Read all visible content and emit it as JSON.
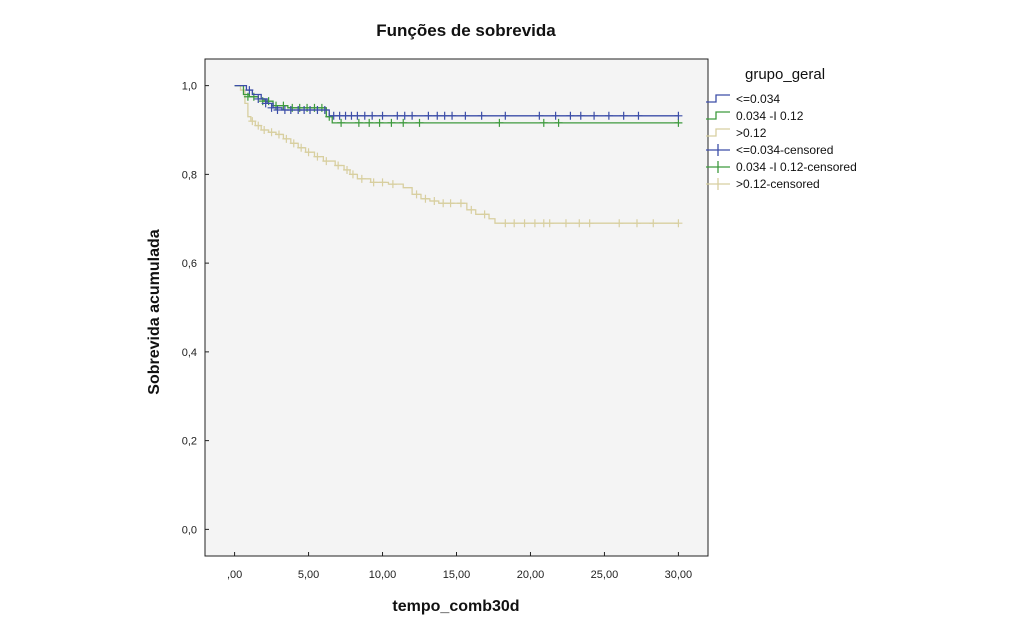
{
  "chart_data": {
    "type": "line",
    "title": "Funções de sobrevida",
    "xlabel": "tempo_comb30d",
    "ylabel": "Sobrevida acumulada",
    "xlim": [
      -2,
      32
    ],
    "ylim": [
      -0.06,
      1.06
    ],
    "xticks": [
      0,
      5,
      10,
      15,
      20,
      25,
      30
    ],
    "xtick_labels": [
      ",00",
      "5,00",
      "10,00",
      "15,00",
      "20,00",
      "25,00",
      "30,00"
    ],
    "yticks": [
      0,
      0.2,
      0.4,
      0.6,
      0.8,
      1.0
    ],
    "ytick_labels": [
      "0,0",
      "0,2",
      "0,4",
      "0,6",
      "0,8",
      "1,0"
    ],
    "grid": false,
    "legend": {
      "title": "grupo_geral",
      "position": "right",
      "entries": [
        {
          "label": "<=0.034",
          "kind": "step",
          "color": "#3c4ea8"
        },
        {
          "label": "0.034 -I 0.12",
          "kind": "step",
          "color": "#3e9a3e"
        },
        {
          "label": ">0.12",
          "kind": "step",
          "color": "#d8cfa0"
        },
        {
          "label": "<=0.034-censored",
          "kind": "censor",
          "color": "#3c4ea8"
        },
        {
          "label": "0.034 -I 0.12-censored",
          "kind": "censor",
          "color": "#3e9a3e"
        },
        {
          "label": ">0.12-censored",
          "kind": "censor",
          "color": "#d8cfa0"
        }
      ]
    },
    "series": [
      {
        "name": "<=0.034",
        "color": "#3c4ea8",
        "x": [
          0,
          0.8,
          1.2,
          1.8,
          2.2,
          2.6,
          3.2,
          4.2,
          6.4,
          30
        ],
        "y": [
          1.0,
          0.99,
          0.98,
          0.97,
          0.96,
          0.95,
          0.945,
          0.945,
          0.932,
          0.932
        ],
        "censored": [
          [
            1.0,
            0.99
          ],
          [
            1.6,
            0.97
          ],
          [
            2.1,
            0.96
          ],
          [
            2.5,
            0.95
          ],
          [
            2.9,
            0.945
          ],
          [
            3.4,
            0.945
          ],
          [
            3.8,
            0.945
          ],
          [
            4.3,
            0.945
          ],
          [
            4.7,
            0.945
          ],
          [
            5.1,
            0.945
          ],
          [
            5.6,
            0.945
          ],
          [
            6.1,
            0.945
          ],
          [
            6.7,
            0.932
          ],
          [
            7.1,
            0.932
          ],
          [
            7.5,
            0.932
          ],
          [
            7.9,
            0.932
          ],
          [
            8.3,
            0.932
          ],
          [
            8.8,
            0.932
          ],
          [
            9.3,
            0.932
          ],
          [
            10.0,
            0.932
          ],
          [
            11.0,
            0.932
          ],
          [
            11.5,
            0.932
          ],
          [
            12.0,
            0.932
          ],
          [
            13.1,
            0.932
          ],
          [
            13.7,
            0.932
          ],
          [
            14.2,
            0.932
          ],
          [
            14.7,
            0.932
          ],
          [
            15.6,
            0.932
          ],
          [
            16.7,
            0.932
          ],
          [
            18.3,
            0.932
          ],
          [
            20.6,
            0.932
          ],
          [
            21.7,
            0.932
          ],
          [
            22.7,
            0.932
          ],
          [
            23.4,
            0.932
          ],
          [
            24.3,
            0.932
          ],
          [
            25.3,
            0.932
          ],
          [
            26.3,
            0.932
          ],
          [
            27.3,
            0.932
          ],
          [
            30.0,
            0.932
          ]
        ]
      },
      {
        "name": "0.034 -I 0.12",
        "color": "#3e9a3e",
        "x": [
          0,
          0.6,
          1.0,
          1.6,
          2.0,
          2.6,
          3.6,
          6.2,
          6.6,
          30
        ],
        "y": [
          1.0,
          0.98,
          0.975,
          0.97,
          0.965,
          0.955,
          0.95,
          0.93,
          0.916,
          0.916
        ],
        "censored": [
          [
            0.9,
            0.975
          ],
          [
            1.3,
            0.975
          ],
          [
            1.9,
            0.965
          ],
          [
            2.3,
            0.965
          ],
          [
            2.8,
            0.955
          ],
          [
            3.3,
            0.955
          ],
          [
            3.9,
            0.95
          ],
          [
            4.4,
            0.95
          ],
          [
            4.9,
            0.95
          ],
          [
            5.4,
            0.95
          ],
          [
            5.9,
            0.95
          ],
          [
            6.4,
            0.93
          ],
          [
            7.2,
            0.916
          ],
          [
            8.4,
            0.916
          ],
          [
            9.1,
            0.916
          ],
          [
            9.8,
            0.916
          ],
          [
            10.6,
            0.916
          ],
          [
            11.4,
            0.916
          ],
          [
            12.5,
            0.916
          ],
          [
            17.9,
            0.916
          ],
          [
            20.9,
            0.916
          ],
          [
            21.9,
            0.916
          ],
          [
            30.0,
            0.916
          ]
        ]
      },
      {
        "name": ">0.12",
        "color": "#d8cfa0",
        "x": [
          0,
          0.4,
          0.7,
          0.9,
          1.1,
          1.4,
          1.8,
          2.3,
          2.8,
          3.3,
          3.8,
          4.3,
          4.8,
          5.4,
          6.0,
          6.8,
          7.4,
          7.8,
          8.3,
          9.2,
          10.4,
          11.4,
          12.0,
          12.6,
          13.2,
          13.8,
          15.7,
          16.3,
          17.2,
          17.6,
          30
        ],
        "y": [
          1.0,
          0.99,
          0.96,
          0.93,
          0.92,
          0.91,
          0.9,
          0.895,
          0.89,
          0.88,
          0.87,
          0.86,
          0.85,
          0.84,
          0.83,
          0.82,
          0.81,
          0.8,
          0.79,
          0.782,
          0.778,
          0.77,
          0.755,
          0.745,
          0.74,
          0.735,
          0.72,
          0.71,
          0.7,
          0.69,
          0.69
        ],
        "censored": [
          [
            1.2,
            0.92
          ],
          [
            1.6,
            0.91
          ],
          [
            2.0,
            0.9
          ],
          [
            2.5,
            0.895
          ],
          [
            3.0,
            0.89
          ],
          [
            3.5,
            0.88
          ],
          [
            4.0,
            0.87
          ],
          [
            4.5,
            0.86
          ],
          [
            5.0,
            0.85
          ],
          [
            5.6,
            0.84
          ],
          [
            6.2,
            0.83
          ],
          [
            7.0,
            0.82
          ],
          [
            7.6,
            0.81
          ],
          [
            8.0,
            0.8
          ],
          [
            8.6,
            0.79
          ],
          [
            9.4,
            0.782
          ],
          [
            10.0,
            0.782
          ],
          [
            10.7,
            0.778
          ],
          [
            12.3,
            0.755
          ],
          [
            12.9,
            0.745
          ],
          [
            13.5,
            0.74
          ],
          [
            14.1,
            0.735
          ],
          [
            14.6,
            0.735
          ],
          [
            15.3,
            0.735
          ],
          [
            16.0,
            0.72
          ],
          [
            16.9,
            0.71
          ],
          [
            18.3,
            0.69
          ],
          [
            18.9,
            0.69
          ],
          [
            19.6,
            0.69
          ],
          [
            20.3,
            0.69
          ],
          [
            20.9,
            0.69
          ],
          [
            21.3,
            0.69
          ],
          [
            22.4,
            0.69
          ],
          [
            23.3,
            0.69
          ],
          [
            24.0,
            0.69
          ],
          [
            26.0,
            0.69
          ],
          [
            27.2,
            0.69
          ],
          [
            28.3,
            0.69
          ],
          [
            30.0,
            0.69
          ]
        ]
      }
    ]
  }
}
